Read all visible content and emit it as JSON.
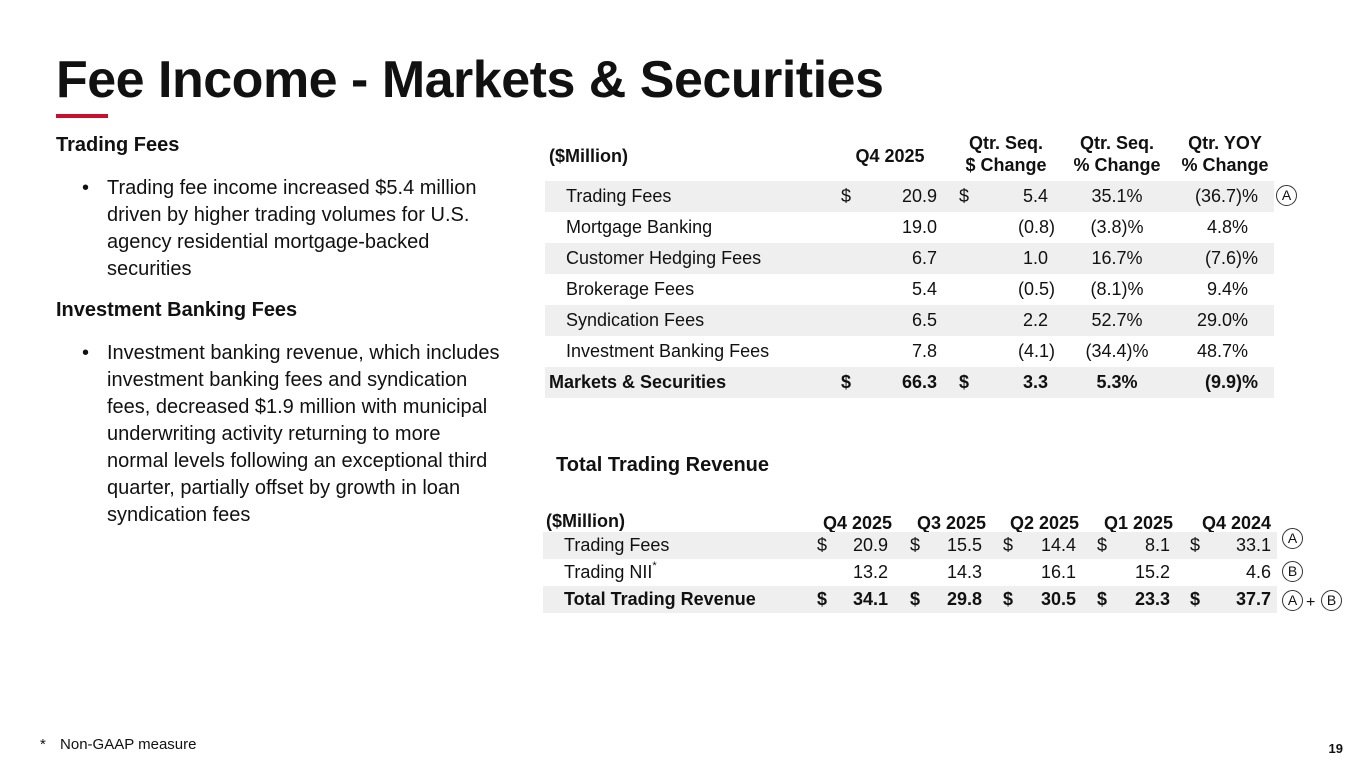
{
  "title": "Fee Income - Markets & Securities",
  "left": {
    "trading_heading": "Trading Fees",
    "trading_bullet": "Trading fee income increased $5.4 million driven by higher trading volumes for U.S. agency residential mortgage-backed securities",
    "ib_heading": "Investment Banking Fees",
    "ib_bullet": "Investment banking revenue, which includes investment banking fees and syndication fees, decreased $1.9 million with municipal underwriting activity returning to more normal levels following an exceptional third quarter, partially offset by growth in loan syndication fees",
    "bullet_char": "•"
  },
  "fee_table": {
    "unit_header": "($Million)",
    "col_q4": "Q4 2025",
    "col_seq_d_line1": "Qtr. Seq.",
    "col_seq_d_line2": "$ Change",
    "col_seq_p_line1": "Qtr. Seq.",
    "col_seq_p_line2": "% Change",
    "col_yoy_line1": "Qtr. YOY",
    "col_yoy_line2": "% Change",
    "currency": "$",
    "rows": [
      {
        "label": "Trading Fees",
        "q4": "20.9",
        "seq_d": "5.4",
        "seq_p": "35.1%",
        "yoy": "(36.7)%"
      },
      {
        "label": "Mortgage Banking",
        "q4": "19.0",
        "seq_d": "(0.8)",
        "seq_p": "(3.8)%",
        "yoy": "4.8%"
      },
      {
        "label": "Customer Hedging Fees",
        "q4": "6.7",
        "seq_d": "1.0",
        "seq_p": "16.7%",
        "yoy": "(7.6)%"
      },
      {
        "label": "Brokerage Fees",
        "q4": "5.4",
        "seq_d": "(0.5)",
        "seq_p": "(8.1)%",
        "yoy": "9.4%"
      },
      {
        "label": "Syndication Fees",
        "q4": "6.5",
        "seq_d": "2.2",
        "seq_p": "52.7%",
        "yoy": "29.0%"
      },
      {
        "label": "Investment Banking Fees",
        "q4": "7.8",
        "seq_d": "(4.1)",
        "seq_p": "(34.4)%",
        "yoy": "48.7%"
      }
    ],
    "total": {
      "label": "Markets & Securities",
      "q4": "66.3",
      "seq_d": "3.3",
      "seq_p": "5.3%",
      "yoy": "(9.9)%"
    },
    "marker": "A"
  },
  "trading_table": {
    "title": "Total Trading Revenue",
    "unit_header": "($Million)",
    "columns": [
      "Q4 2025",
      "Q3 2025",
      "Q2 2025",
      "Q1 2025",
      "Q4 2024"
    ],
    "currency": "$",
    "rows": [
      {
        "label": "Trading Fees",
        "values": [
          "20.9",
          "15.5",
          "14.4",
          "8.1",
          "33.1"
        ],
        "marker": "A"
      },
      {
        "label": "Trading NII",
        "sup": "*",
        "values": [
          "13.2",
          "14.3",
          "16.1",
          "15.2",
          "4.6"
        ],
        "marker": "B"
      }
    ],
    "total": {
      "label": "Total Trading Revenue",
      "values": [
        "34.1",
        "29.8",
        "30.5",
        "23.3",
        "37.7"
      ],
      "marker_a": "A",
      "plus": "+",
      "marker_b": "B"
    }
  },
  "footnote": {
    "mark": "*",
    "text": "Non-GAAP measure"
  },
  "page_number": "19",
  "colors": {
    "accent": "#c8102e",
    "row_shade": "#efefef"
  }
}
